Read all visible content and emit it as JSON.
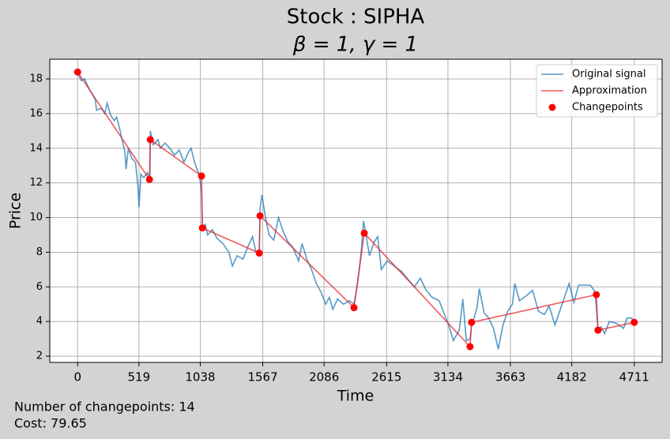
{
  "chart_data": {
    "type": "line",
    "title": "Stock : SIPHA",
    "subtitle": "β = 1, γ = 1",
    "x_label": "Time",
    "y_label": "Price",
    "annotations": [
      "Number of changepoints: 14",
      "Cost: 79.65"
    ],
    "xlim": [
      -235.55,
      4946.55
    ],
    "ylim": [
      1.64,
      19.14
    ],
    "xticks": [
      0,
      519,
      1038,
      1567,
      2086,
      2615,
      3134,
      3663,
      4182,
      4711
    ],
    "yticks": [
      2,
      4,
      6,
      8,
      10,
      12,
      14,
      16,
      18
    ],
    "grid": true,
    "legend": "upper-right",
    "series": [
      {
        "name": "Original signal",
        "type": "line",
        "color": "#1f77b4",
        "x": [
          0,
          30,
          60,
          100,
          150,
          160,
          200,
          230,
          250,
          280,
          310,
          330,
          350,
          380,
          400,
          410,
          430,
          460,
          490,
          510,
          520,
          535,
          560,
          590,
          612,
          615,
          640,
          680,
          700,
          740,
          780,
          820,
          860,
          900,
          940,
          960,
          990,
          1010,
          1030,
          1049,
          1056,
          1080,
          1100,
          1140,
          1180,
          1230,
          1280,
          1310,
          1350,
          1400,
          1440,
          1480,
          1510,
          1537,
          1544,
          1560,
          1590,
          1620,
          1660,
          1700,
          1740,
          1780,
          1820,
          1870,
          1900,
          1940,
          1980,
          2020,
          2060,
          2100,
          2130,
          2160,
          2200,
          2250,
          2300,
          2339,
          2370,
          2400,
          2420,
          2440,
          2470,
          2510,
          2540,
          2570,
          2620,
          2680,
          2740,
          2800,
          2850,
          2900,
          2950,
          3000,
          3060,
          3100,
          3140,
          3180,
          3230,
          3260,
          3290,
          3321,
          3334,
          3380,
          3400,
          3440,
          3480,
          3520,
          3560,
          3600,
          3640,
          3680,
          3700,
          3740,
          3800,
          3850,
          3900,
          3950,
          3990,
          4040,
          4080,
          4130,
          4160,
          4200,
          4240,
          4300,
          4340,
          4380,
          4404,
          4430,
          4460,
          4500,
          4560,
          4620,
          4650,
          4690,
          4711
        ],
        "values": [
          18.4,
          17.9,
          18.0,
          17.4,
          16.8,
          16.2,
          16.3,
          16.0,
          16.6,
          15.9,
          15.6,
          15.8,
          15.3,
          14.4,
          13.8,
          12.8,
          14.0,
          13.4,
          13.2,
          11.8,
          10.6,
          12.5,
          12.3,
          12.6,
          12.2,
          15.0,
          14.2,
          14.5,
          14.0,
          14.3,
          14.0,
          13.6,
          13.9,
          13.2,
          13.8,
          14.0,
          13.2,
          12.8,
          12.5,
          11.5,
          9.4,
          9.6,
          9.0,
          9.3,
          8.8,
          8.5,
          8.0,
          7.2,
          7.8,
          7.6,
          8.3,
          8.9,
          8.0,
          7.9,
          10.5,
          11.3,
          10.0,
          9.0,
          8.7,
          10.0,
          9.2,
          8.6,
          8.3,
          7.5,
          8.5,
          7.6,
          7.0,
          6.2,
          5.7,
          5.0,
          5.4,
          4.7,
          5.3,
          5.0,
          5.2,
          5.0,
          6.2,
          8.0,
          9.8,
          9.0,
          7.8,
          8.6,
          8.9,
          7.0,
          7.5,
          7.2,
          6.9,
          6.4,
          6.0,
          6.5,
          5.8,
          5.4,
          5.2,
          4.5,
          3.8,
          2.9,
          3.5,
          5.3,
          2.9,
          3.0,
          3.7,
          4.8,
          5.9,
          4.5,
          4.2,
          3.6,
          2.4,
          3.8,
          4.6,
          5.0,
          6.2,
          5.2,
          5.5,
          5.8,
          4.6,
          4.4,
          4.9,
          3.8,
          4.6,
          5.6,
          6.2,
          5.1,
          6.1,
          6.1,
          6.1,
          5.7,
          3.5,
          3.7,
          3.3,
          4.0,
          3.9,
          3.6,
          4.2,
          4.2,
          3.95
        ]
      },
      {
        "name": "Approximation",
        "type": "line",
        "color": "#e8262a",
        "x": [
          0,
          608,
          615,
          1049,
          1056,
          1537,
          1544,
          2339,
          2426,
          3321,
          3334,
          4390,
          4404,
          4711
        ],
        "values": [
          18.4,
          12.2,
          14.5,
          12.4,
          9.4,
          7.95,
          10.1,
          4.8,
          9.1,
          2.55,
          3.95,
          5.55,
          3.5,
          3.95
        ]
      },
      {
        "name": "Changepoints",
        "type": "scatter",
        "color": "#ff0000",
        "x": [
          0,
          608,
          615,
          1049,
          1056,
          1537,
          1544,
          2339,
          2426,
          3321,
          3334,
          4390,
          4404,
          4711
        ],
        "values": [
          18.4,
          12.2,
          14.5,
          12.4,
          9.4,
          7.95,
          10.1,
          4.8,
          9.1,
          2.55,
          3.95,
          5.55,
          3.5,
          3.95
        ]
      }
    ]
  }
}
